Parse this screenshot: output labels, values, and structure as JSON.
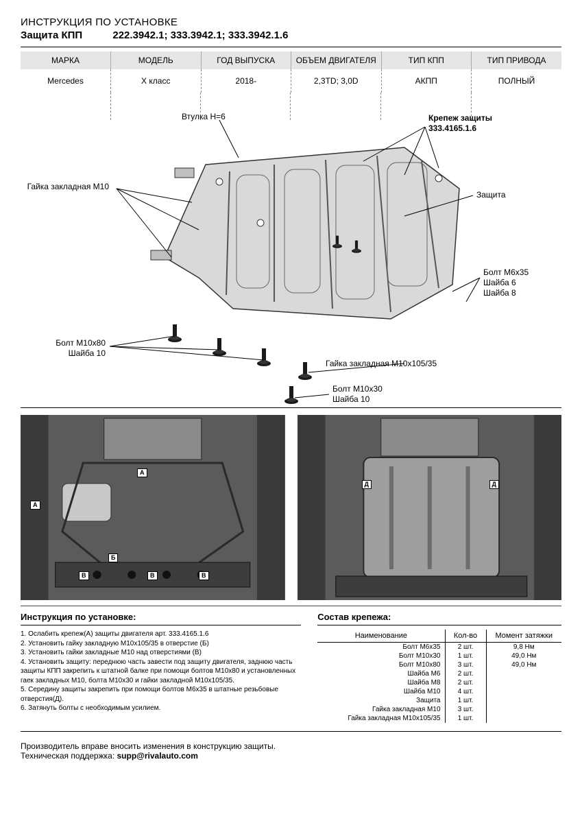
{
  "header": {
    "line1": "ИНСТРУКЦИЯ ПО УСТАНОВКЕ",
    "product": "Защита КПП",
    "codes": "222.3942.1; 333.3942.1; 333.3942.1.6"
  },
  "spec_table": {
    "columns": [
      "МАРКА",
      "МОДЕЛЬ",
      "ГОД ВЫПУСКА",
      "ОБЪЕМ ДВИГАТЕЛЯ",
      "ТИП КПП",
      "ТИП ПРИВОДА"
    ],
    "row": [
      "Mercedes",
      "X класс",
      "2018-",
      "2,3TD; 3,0D",
      "АКПП",
      "ПОЛНЫЙ"
    ],
    "col_widths_pct": [
      16.6,
      16.6,
      16.6,
      16.8,
      16.7,
      16.7
    ]
  },
  "diagram": {
    "labels": {
      "vtulka": "Втулка H=6",
      "krepezh_title": "Крепеж защиты",
      "krepezh_code": "333.4165.1.6",
      "gaika_m10": "Гайка закладная М10",
      "zashita": "Защита",
      "bolt_m6": "Болт М6х35",
      "shaiba6": "Шайба 6",
      "shaiba8": "Шайба 8",
      "bolt_m10x80": "Болт М10х80",
      "shaiba10a": "Шайба 10",
      "gaika_m10x105": "Гайка закладная М10х105/35",
      "bolt_m10x30": "Болт М10х30",
      "shaiba10b": "Шайба 10"
    },
    "plate_color": "#d9d9d9",
    "plate_stroke": "#333333",
    "bolt_color": "#1a1a1a"
  },
  "photos": {
    "markers_left": [
      "А",
      "А",
      "Б",
      "В",
      "В",
      "В"
    ],
    "markers_right": [
      "Д",
      "Д"
    ]
  },
  "instructions": {
    "title": "Инструкция по установке:",
    "steps": [
      "1. Ослабить крепеж(А) защиты двигателя арт. 333.4165.1.6",
      "2. Установить гайку закладную М10х105/35 в отверстие (Б)",
      "3. Установить гайки закладные М10 над отверстиями (В)",
      "4. Установить защиту: переднюю часть завести под защиту двигателя, заднюю часть защиты КПП закрепить к штатной балке при помощи болтов М10х80 и установленных гаек закладных М10, болта М10х30 и гайки закладной М10х105/35.",
      "5. Середину защиты закрепить при помощи болтов М6х35 в штатные резьбовые отверстия(Д).",
      "6. Затянуть болты с необходимым усилием."
    ]
  },
  "parts": {
    "title": "Состав крепежа:",
    "columns": [
      "Наименование",
      "Кол-во",
      "Момент затяжки"
    ],
    "rows": [
      [
        "Болт М6х35",
        "2 шт.",
        "9,8 Нм"
      ],
      [
        "Болт М10х30",
        "1 шт.",
        "49,0 Нм"
      ],
      [
        "Болт М10х80",
        "3 шт.",
        "49,0 Нм"
      ],
      [
        "Шайба М6",
        "2 шт.",
        ""
      ],
      [
        "Шайба М8",
        "2 шт.",
        ""
      ],
      [
        "Шайба М10",
        "4 шт.",
        ""
      ],
      [
        "Защита",
        "1 шт.",
        ""
      ],
      [
        "Гайка закладная М10",
        "3 шт.",
        ""
      ],
      [
        "Гайка закладная М10х105/35",
        "1 шт.",
        ""
      ]
    ]
  },
  "footer": {
    "line1": "Производитель вправе вносить изменения в конструкцию защиты.",
    "line2_a": "Техническая поддержка: ",
    "line2_b": "supp@rivalauto.com"
  }
}
